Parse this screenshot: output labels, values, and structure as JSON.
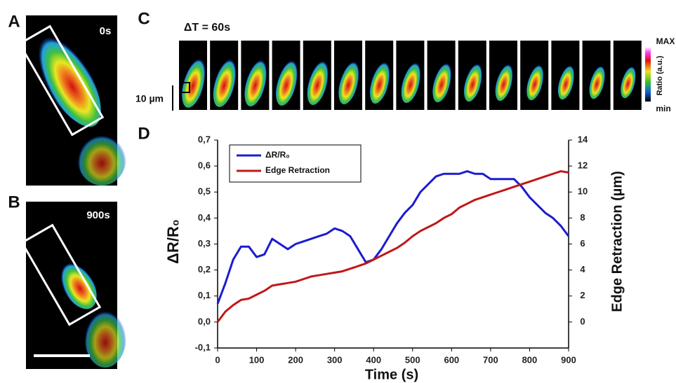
{
  "figure": {
    "panel_a": {
      "label": "A",
      "time": "0s"
    },
    "panel_b": {
      "label": "B",
      "time": "900s"
    },
    "panel_c": {
      "label": "C",
      "interval": "ΔT = 60s",
      "scale": "10 µm",
      "colorbar": {
        "max": "MAX",
        "label": "Ratio (a.u.)",
        "min": "min"
      }
    },
    "panel_d": {
      "label": "D"
    }
  },
  "chart_data": {
    "type": "line",
    "x": [
      0,
      20,
      40,
      60,
      80,
      100,
      120,
      140,
      160,
      180,
      200,
      220,
      240,
      260,
      280,
      300,
      320,
      340,
      360,
      380,
      400,
      420,
      440,
      460,
      480,
      500,
      520,
      540,
      560,
      580,
      600,
      620,
      640,
      660,
      680,
      700,
      720,
      740,
      760,
      780,
      800,
      820,
      840,
      860,
      880,
      900
    ],
    "series": [
      {
        "name": "ΔR/R₀",
        "color": "#1c1ccf",
        "values": [
          0.07,
          0.15,
          0.24,
          0.29,
          0.29,
          0.25,
          0.26,
          0.32,
          0.3,
          0.28,
          0.3,
          0.31,
          0.32,
          0.33,
          0.34,
          0.36,
          0.35,
          0.33,
          0.28,
          0.23,
          0.24,
          0.28,
          0.33,
          0.38,
          0.42,
          0.45,
          0.5,
          0.53,
          0.56,
          0.57,
          0.57,
          0.57,
          0.58,
          0.57,
          0.57,
          0.55,
          0.55,
          0.55,
          0.55,
          0.52,
          0.48,
          0.45,
          0.42,
          0.4,
          0.37,
          0.33
        ]
      },
      {
        "name": "Edge Retraction",
        "color": "#c01818",
        "axis": "y2",
        "values": [
          0,
          0.8,
          1.3,
          1.7,
          1.8,
          2.1,
          2.4,
          2.8,
          2.9,
          3.0,
          3.1,
          3.3,
          3.5,
          3.6,
          3.7,
          3.8,
          3.9,
          4.1,
          4.3,
          4.5,
          4.8,
          5.1,
          5.4,
          5.7,
          6.1,
          6.6,
          7.0,
          7.3,
          7.6,
          8.0,
          8.3,
          8.8,
          9.1,
          9.4,
          9.6,
          9.8,
          10.0,
          10.2,
          10.4,
          10.6,
          10.8,
          11.0,
          11.2,
          11.4,
          11.6,
          11.5
        ]
      }
    ],
    "xlabel": "Time (s)",
    "ylabel": "ΔR/R₀",
    "y2label": "Edge Retraction (µm)",
    "xlim": [
      0,
      900
    ],
    "xticks": [
      0,
      100,
      200,
      300,
      400,
      500,
      600,
      700,
      800,
      900
    ],
    "ylim": [
      -0.1,
      0.7
    ],
    "yticks": [
      {
        "value": -0.1,
        "label": "-0,1"
      },
      {
        "value": 0,
        "label": "0,0"
      },
      {
        "value": 0.1,
        "label": "0,1"
      },
      {
        "value": 0.2,
        "label": "0,2"
      },
      {
        "value": 0.3,
        "label": "0,3"
      },
      {
        "value": 0.4,
        "label": "0,4"
      },
      {
        "value": 0.5,
        "label": "0,5"
      },
      {
        "value": 0.6,
        "label": "0,6"
      },
      {
        "value": 0.7,
        "label": "0,7"
      }
    ],
    "y2lim": [
      -2,
      14
    ],
    "y2ticks": [
      0,
      2,
      4,
      6,
      8,
      10,
      12,
      14
    ],
    "legend": "upper left"
  }
}
